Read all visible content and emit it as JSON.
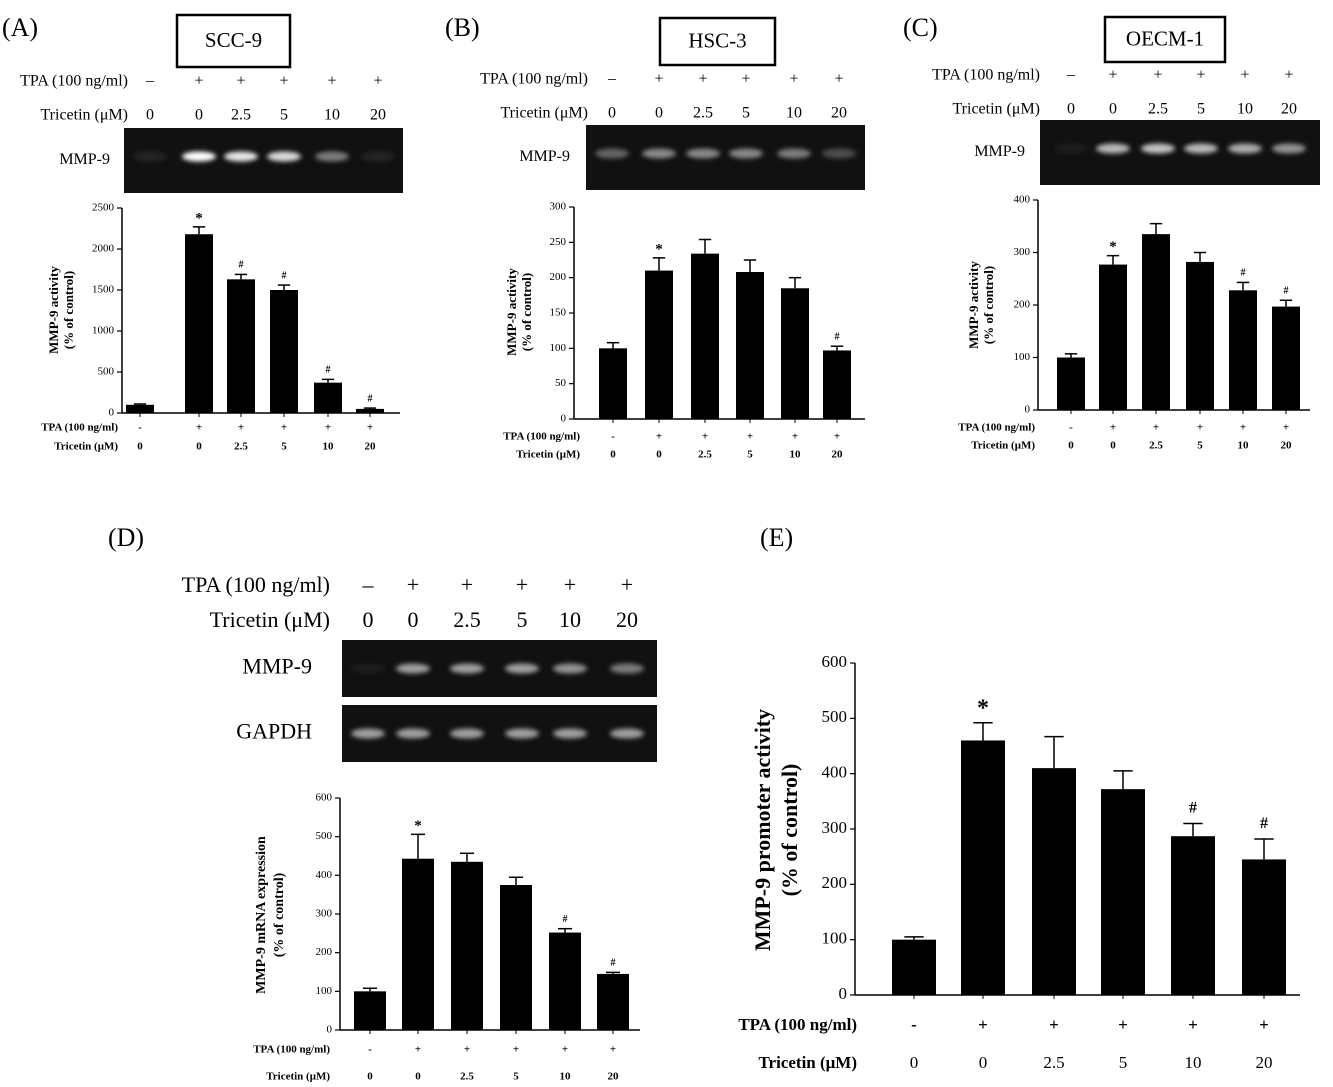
{
  "chart_data": [
    {
      "type": "bar",
      "panel": "(A)",
      "title": "SCC-9",
      "blot": {
        "treatments": [
          {
            "label": "TPA (100 ng/ml)",
            "values": [
              "–",
              "+",
              "+",
              "+",
              "+",
              "+"
            ]
          },
          {
            "label": "Tricetin (μM)",
            "values": [
              "0",
              "0",
              "2.5",
              "5",
              "10",
              "20"
            ]
          }
        ],
        "bands": [
          "MMP-9"
        ]
      },
      "ylabel": [
        "MMP-9 activity",
        "(% of control)"
      ],
      "treatments": [
        {
          "label": "TPA (100 ng/ml)",
          "values": [
            "-",
            "+",
            "+",
            "+",
            "+",
            "+"
          ]
        },
        {
          "label": "Tricetin (μM)",
          "values": [
            "0",
            "0",
            "2.5",
            "5",
            "10",
            "20"
          ]
        }
      ],
      "values": [
        100,
        2180,
        1630,
        1500,
        370,
        50
      ],
      "errors": [
        10,
        90,
        60,
        60,
        40,
        10
      ],
      "annotations": [
        null,
        "*",
        "#",
        "#",
        "#",
        "#"
      ],
      "color": "#000000",
      "ylim": [
        0,
        2500
      ],
      "yticks": [
        0,
        500,
        1000,
        1500,
        2000,
        2500
      ]
    },
    {
      "type": "bar",
      "panel": "(B)",
      "title": "HSC-3",
      "blot": {
        "treatments": [
          {
            "label": "TPA (100 ng/ml)",
            "values": [
              "–",
              "+",
              "+",
              "+",
              "+",
              "+"
            ]
          },
          {
            "label": "Tricetin (μM)",
            "values": [
              "0",
              "0",
              "2.5",
              "5",
              "10",
              "20"
            ]
          }
        ],
        "bands": [
          "MMP-9"
        ]
      },
      "ylabel": [
        "MMP-9 activity",
        "(% of control)"
      ],
      "treatments": [
        {
          "label": "TPA (100 ng/ml)",
          "values": [
            "-",
            "+",
            "+",
            "+",
            "+",
            "+"
          ]
        },
        {
          "label": "Tricetin (μM)",
          "values": [
            "0",
            "0",
            "2.5",
            "5",
            "10",
            "20"
          ]
        }
      ],
      "values": [
        100,
        210,
        234,
        208,
        185,
        97
      ],
      "errors": [
        8,
        18,
        20,
        17,
        15,
        6
      ],
      "annotations": [
        null,
        "*",
        null,
        null,
        null,
        "#"
      ],
      "color": "#000000",
      "ylim": [
        0,
        300
      ],
      "yticks": [
        0,
        50,
        100,
        150,
        200,
        250,
        300
      ]
    },
    {
      "type": "bar",
      "panel": "(C)",
      "title": "OECM-1",
      "blot": {
        "treatments": [
          {
            "label": "TPA (100 ng/ml)",
            "values": [
              "–",
              "+",
              "+",
              "+",
              "+",
              "+"
            ]
          },
          {
            "label": "Tricetin (μM)",
            "values": [
              "0",
              "0",
              "2.5",
              "5",
              "10",
              "20"
            ]
          }
        ],
        "bands": [
          "MMP-9"
        ]
      },
      "ylabel": [
        "MMP-9 activity",
        "(% of control)"
      ],
      "treatments": [
        {
          "label": "TPA (100 ng/ml)",
          "values": [
            "-",
            "+",
            "+",
            "+",
            "+",
            "+"
          ]
        },
        {
          "label": "Tricetin (μM)",
          "values": [
            "0",
            "0",
            "2.5",
            "5",
            "10",
            "20"
          ]
        }
      ],
      "values": [
        100,
        277,
        335,
        282,
        228,
        197
      ],
      "errors": [
        7,
        17,
        20,
        18,
        15,
        12
      ],
      "annotations": [
        null,
        "*",
        null,
        null,
        "#",
        "#"
      ],
      "color": "#000000",
      "ylim": [
        0,
        400
      ],
      "yticks": [
        0,
        100,
        200,
        300,
        400
      ]
    },
    {
      "type": "bar",
      "panel": "(D)",
      "blot": {
        "treatments": [
          {
            "label": "TPA (100 ng/ml)",
            "values": [
              "–",
              "+",
              "+",
              "+",
              "+",
              "+"
            ]
          },
          {
            "label": "Tricetin (μM)",
            "values": [
              "0",
              "0",
              "2.5",
              "5",
              "10",
              "20"
            ]
          }
        ],
        "bands": [
          "MMP-9",
          "GAPDH"
        ]
      },
      "ylabel": [
        "MMP-9 mRNA expression",
        "(% of control)"
      ],
      "treatments": [
        {
          "label": "TPA (100 ng/ml)",
          "values": [
            "-",
            "+",
            "+",
            "+",
            "+",
            "+"
          ]
        },
        {
          "label": "Tricetin (μM)",
          "values": [
            "0",
            "0",
            "2.5",
            "5",
            "10",
            "20"
          ]
        }
      ],
      "values": [
        100,
        443,
        435,
        375,
        252,
        145
      ],
      "errors": [
        8,
        63,
        22,
        20,
        10,
        4
      ],
      "annotations": [
        null,
        "*",
        null,
        null,
        "#",
        "#"
      ],
      "color": "#000000",
      "ylim": [
        0,
        600
      ],
      "yticks": [
        0,
        100,
        200,
        300,
        400,
        500,
        600
      ]
    },
    {
      "type": "bar",
      "panel": "(E)",
      "ylabel": [
        "MMP-9 promoter activity",
        "(% of control)"
      ],
      "treatments": [
        {
          "label": "TPA (100 ng/ml)",
          "values": [
            "-",
            "+",
            "+",
            "+",
            "+",
            "+"
          ]
        },
        {
          "label": "Tricetin (μM)",
          "values": [
            "0",
            "0",
            "2.5",
            "5",
            "10",
            "20"
          ]
        }
      ],
      "values": [
        100,
        460,
        410,
        372,
        287,
        245
      ],
      "errors": [
        5,
        32,
        57,
        33,
        23,
        37
      ],
      "annotations": [
        null,
        "*",
        null,
        null,
        "#",
        "#"
      ],
      "color": "#000000",
      "ylim": [
        0,
        600
      ],
      "yticks": [
        0,
        100,
        200,
        300,
        400,
        500,
        600
      ]
    }
  ]
}
